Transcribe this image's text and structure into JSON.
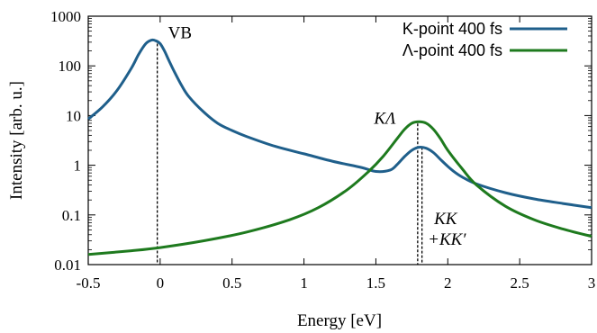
{
  "chart_data": {
    "type": "line",
    "xlabel": "Energy [eV]",
    "ylabel": "Intensity [arb. u.]",
    "xlim": [
      -0.5,
      3
    ],
    "ylim": [
      0.01,
      1000
    ],
    "yscale": "log",
    "x_ticks": [
      "-0.5",
      "0",
      "0.5",
      "1",
      "1.5",
      "2",
      "2.5",
      "3"
    ],
    "y_ticks": [
      "0.01",
      "0.1",
      "1",
      "10",
      "100",
      "1000"
    ],
    "legend_position": "top-right",
    "series": [
      {
        "name": "K-point 400 fs",
        "color": "#1f5f8b",
        "x": [
          -0.5,
          -0.4,
          -0.3,
          -0.2,
          -0.15,
          -0.1,
          -0.06,
          -0.03,
          0.0,
          0.03,
          0.06,
          0.1,
          0.15,
          0.2,
          0.3,
          0.4,
          0.5,
          0.6,
          0.8,
          1.0,
          1.2,
          1.4,
          1.5,
          1.6,
          1.65,
          1.7,
          1.75,
          1.8,
          1.85,
          1.9,
          1.95,
          2.0,
          2.05,
          2.1,
          2.2,
          2.4,
          2.6,
          2.8,
          3.0
        ],
        "y": [
          8.5,
          15,
          32,
          90,
          170,
          280,
          330,
          320,
          280,
          200,
          130,
          75,
          40,
          24,
          12,
          7,
          5,
          3.8,
          2.4,
          1.7,
          1.2,
          0.9,
          0.75,
          0.8,
          1.05,
          1.5,
          2.0,
          2.3,
          2.2,
          1.8,
          1.3,
          0.95,
          0.72,
          0.58,
          0.42,
          0.28,
          0.21,
          0.17,
          0.14
        ]
      },
      {
        "name": "Λ-point 400 fs",
        "color": "#1e7a1e",
        "x": [
          -0.5,
          -0.2,
          0.0,
          0.3,
          0.6,
          0.9,
          1.1,
          1.3,
          1.45,
          1.55,
          1.65,
          1.7,
          1.75,
          1.8,
          1.85,
          1.9,
          1.95,
          2.0,
          2.1,
          2.2,
          2.4,
          2.6,
          2.8,
          3.0
        ],
        "y": [
          0.016,
          0.019,
          0.022,
          0.03,
          0.045,
          0.08,
          0.14,
          0.32,
          0.75,
          1.5,
          3.5,
          5.3,
          7.0,
          7.5,
          7.0,
          5.3,
          3.4,
          2.0,
          0.85,
          0.4,
          0.15,
          0.08,
          0.052,
          0.037
        ]
      }
    ],
    "annotations": [
      {
        "text": "VB",
        "x": -0.02,
        "y": 280,
        "style": "dashed-vertical"
      },
      {
        "text": "KΛ",
        "x": 1.8,
        "y": 7.5,
        "style": "dashed-vertical"
      },
      {
        "line1": "KK",
        "line2": "+KK′",
        "x": 1.83,
        "y": 2.3,
        "style": "dashed-vertical"
      }
    ]
  }
}
